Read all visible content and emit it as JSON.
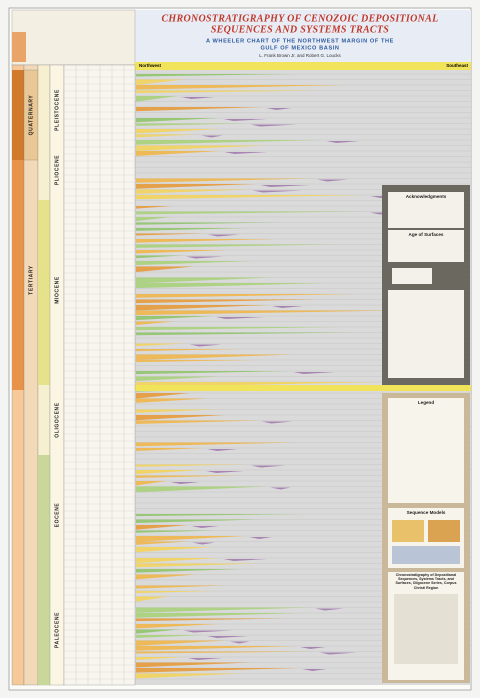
{
  "header": {
    "title_lines": [
      "CHRONOSTRATIGRAPHY OF CENOZOIC DEPOSITIONAL",
      "SEQUENCES AND SYSTEMS TRACTS"
    ],
    "subtitle_lines": [
      "A WHEELER CHART OF THE NORTHWEST MARGIN OF THE",
      "GULF OF MEXICO BASIN"
    ],
    "authors": "L. Frank Brown Jr. and Robert G. Loucks"
  },
  "chart": {
    "left_direction": "Northwest",
    "right_direction": "Southeast"
  },
  "stratigraphy": {
    "eras": [
      "QUATERNARY",
      "TERTIARY"
    ],
    "series": [
      "PLEISTOCENE",
      "PLIOCENE",
      "MIOCENE",
      "OLIGOCENE",
      "EOCENE",
      "PALEOCENE"
    ]
  },
  "panels": {
    "acknowledgments": "Acknowledgments",
    "age_of_surfaces": "Age of Surfaces",
    "legend": "Legend",
    "sequence_models": "Sequence Models",
    "caption": "Chronostratigraphy of Depositional Sequences, Systems Tracts, and Surfaces, Oligocene Series, Corpus Christi Region"
  }
}
